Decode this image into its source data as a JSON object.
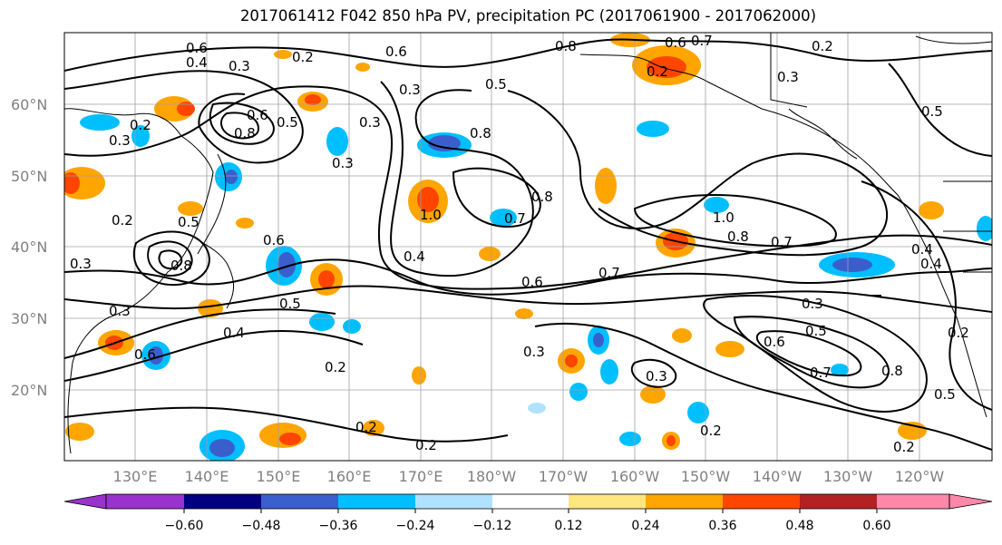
{
  "title": "2017061412 F042 850 hPa PV, precipitation PC (2017061900 - 2017062000)",
  "lat_labels": [
    "60°N",
    "50°N",
    "40°N",
    "30°N",
    "20°N"
  ],
  "lon_labels": [
    "130°E",
    "140°E",
    "150°E",
    "160°E",
    "170°E",
    "180°W",
    "170°W",
    "160°W",
    "150°W",
    "140°W",
    "130°W",
    "120°W"
  ],
  "colorbar": {
    "ticks": [
      "−0.60",
      "−0.48",
      "−0.36",
      "−0.24",
      "−0.12",
      "0.12",
      "0.24",
      "0.36",
      "0.48",
      "0.60"
    ],
    "colors": [
      "#9933cc",
      "#000080",
      "#3a5fcd",
      "#00bfff",
      "#b0e2ff",
      "#ffffff",
      "#ffe680",
      "#ffa500",
      "#ff4500",
      "#b22222",
      "#ff88aa"
    ]
  },
  "contour_labels": [
    "0.6",
    "0.4",
    "0.3",
    "0.2",
    "0.2",
    "0.6",
    "0.8",
    "0.6",
    "0.7",
    "0.2",
    "0.2",
    "0.3",
    "0.3",
    "0.5",
    "0.3",
    "0.5",
    "0.8",
    "0.6",
    "0.3",
    "0.3",
    "0.8",
    "0.5",
    "0.2",
    "0.5",
    "1.0",
    "0.8",
    "0.7",
    "1.0",
    "0.8",
    "0.7",
    "0.6",
    "0.8",
    "0.4",
    "0.7",
    "0.6",
    "0.3",
    "0.4",
    "0.4",
    "0.3",
    "0.5",
    "0.4",
    "0.6",
    "0.3",
    "0.2",
    "0.2",
    "0.3",
    "0.3",
    "0.2",
    "0.2",
    "0.8",
    "0.5",
    "0.6",
    "0.7",
    "0.5",
    "0.2",
    "0.2"
  ]
}
